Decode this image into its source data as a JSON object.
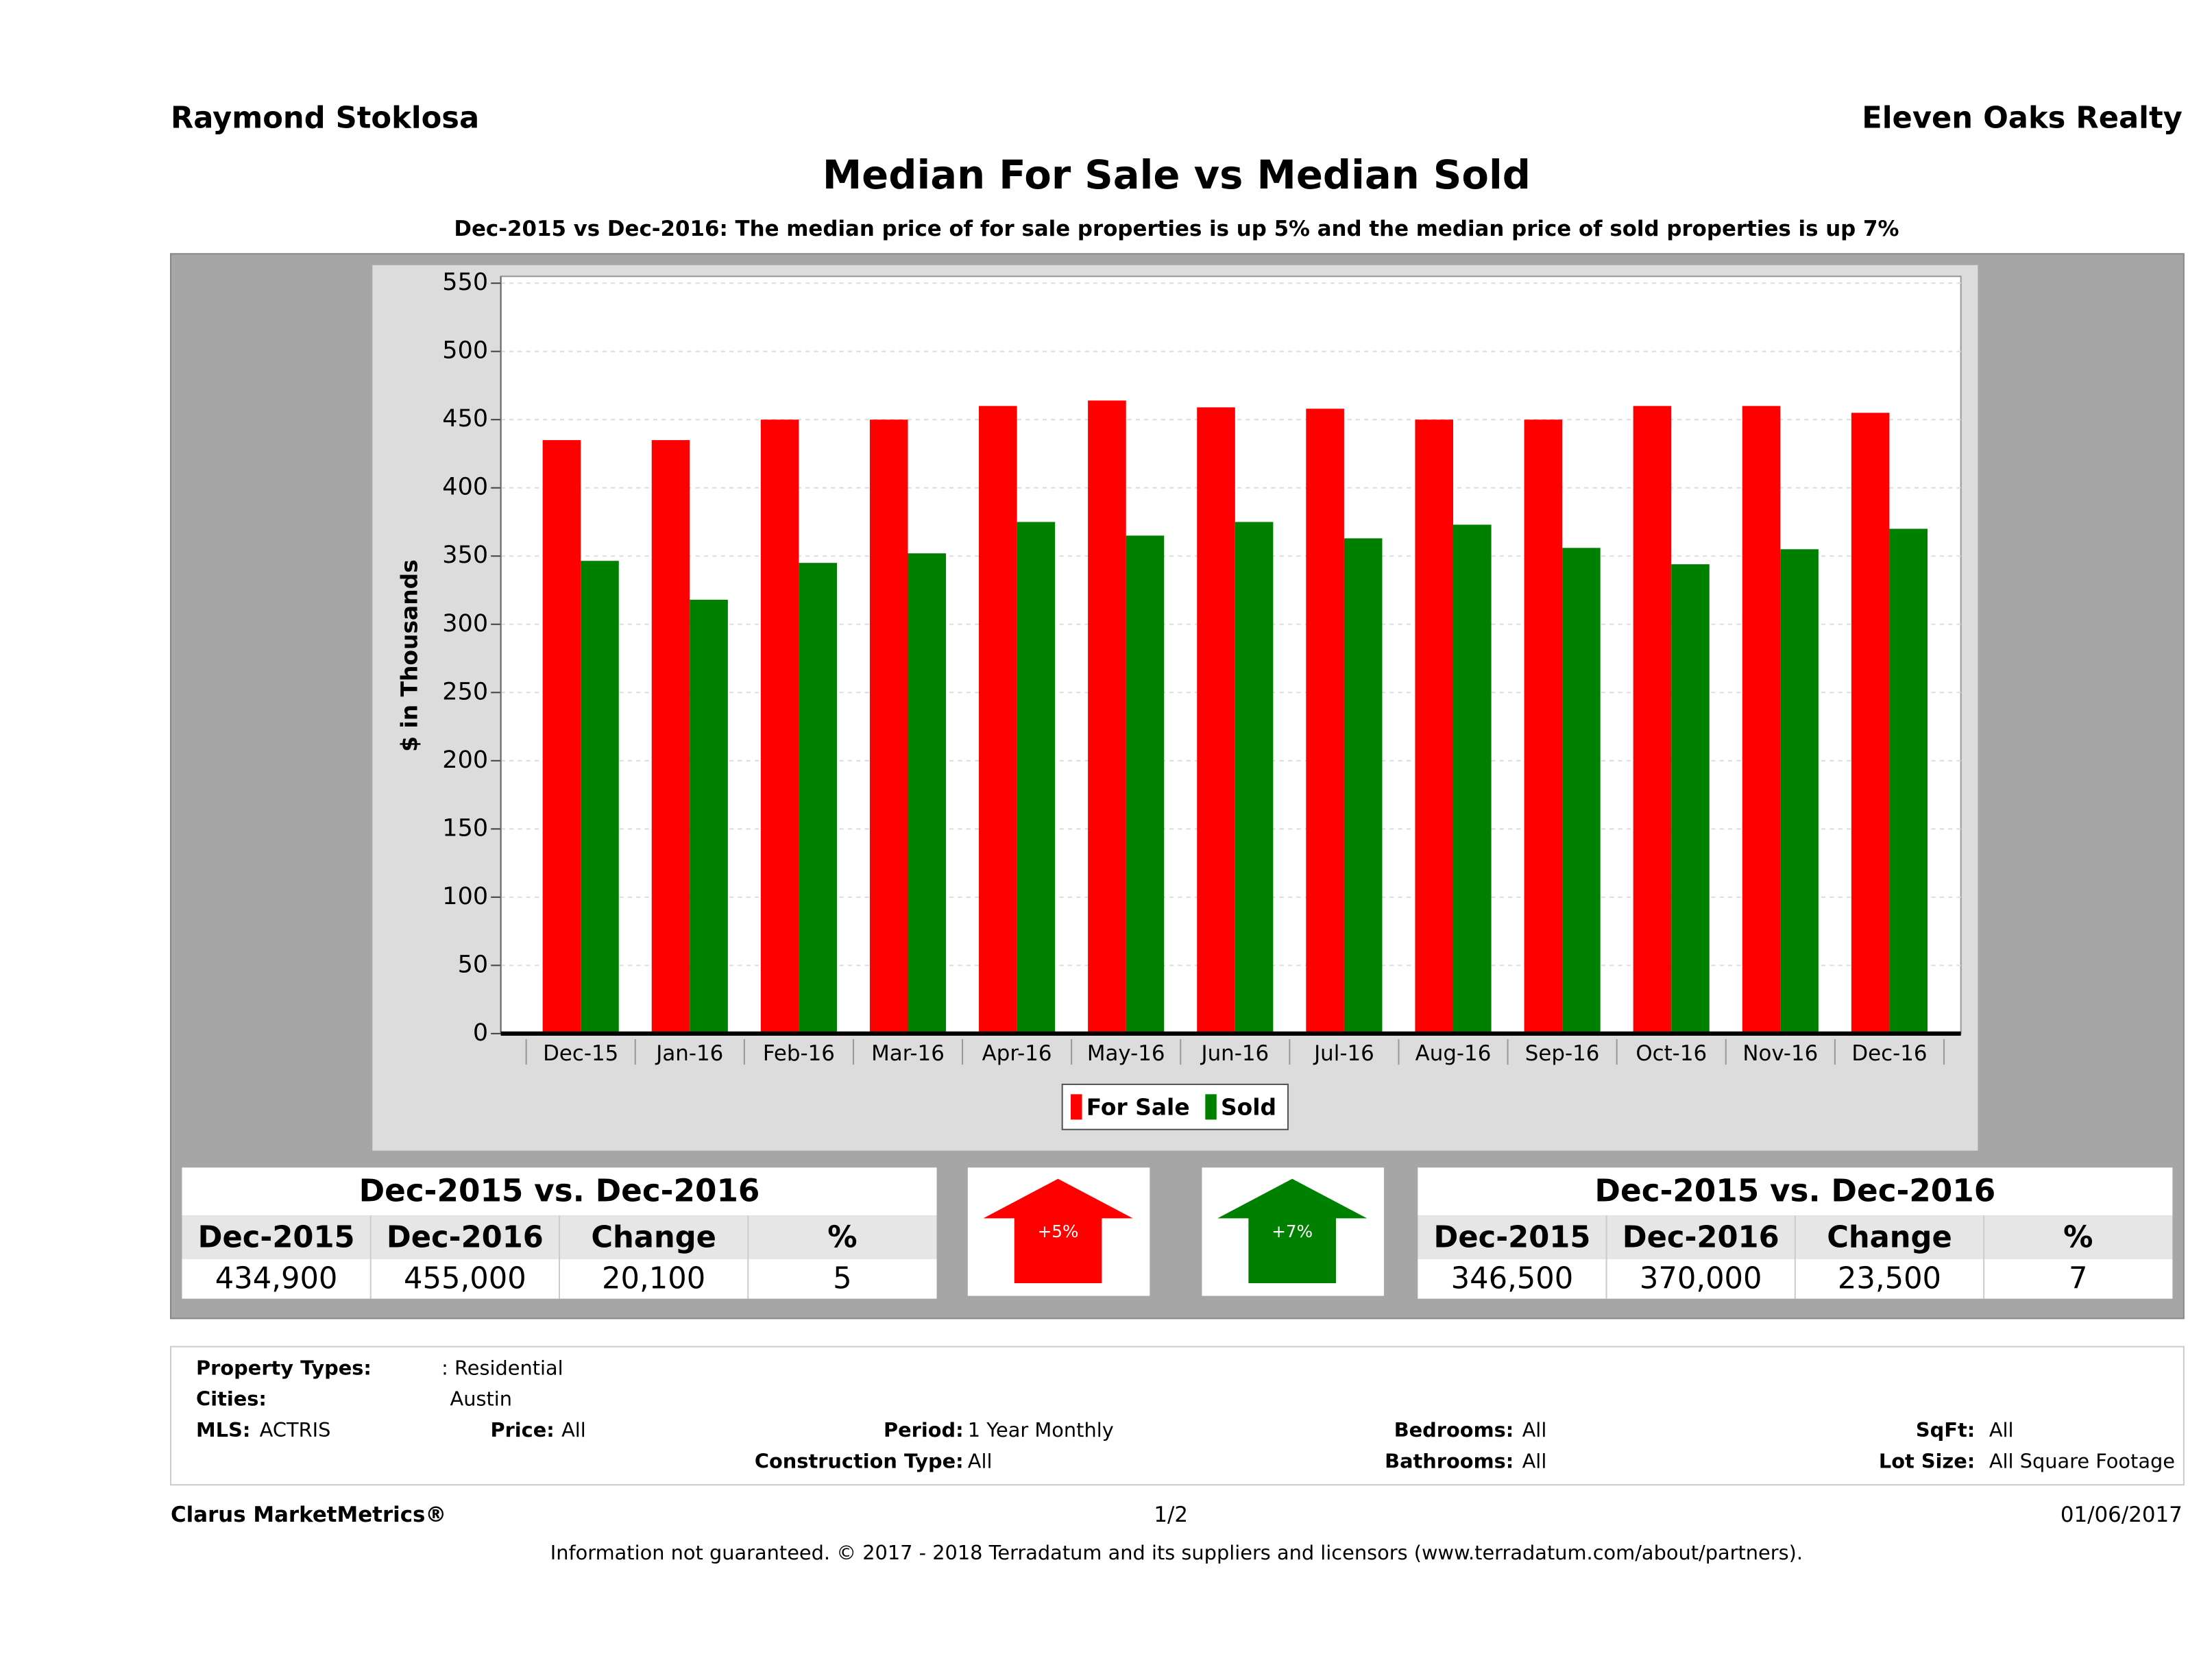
{
  "header": {
    "left": "Raymond Stoklosa",
    "right": "Eleven Oaks Realty"
  },
  "chart_data": {
    "type": "bar",
    "title": "Median For Sale vs Median Sold",
    "subtitle": "Dec-2015 vs Dec-2016: The median price of for sale properties is up 5% and the median price of sold properties is up 7%",
    "y_label": "$ in Thousands",
    "categories": [
      "Dec-15",
      "Jan-16",
      "Feb-16",
      "Mar-16",
      "Apr-16",
      "May-16",
      "Jun-16",
      "Jul-16",
      "Aug-16",
      "Sep-16",
      "Oct-16",
      "Nov-16",
      "Dec-16"
    ],
    "series": [
      {
        "name": "For Sale",
        "color": "#ff0000",
        "values": [
          435,
          435,
          450,
          450,
          460,
          464,
          459,
          458,
          450,
          450,
          460,
          460,
          455
        ]
      },
      {
        "name": "Sold",
        "color": "#008000",
        "values": [
          346.5,
          318,
          345,
          352,
          375,
          365,
          375,
          363,
          373,
          356,
          344,
          355,
          370
        ]
      }
    ],
    "ylim": [
      0,
      555
    ],
    "yticks": [
      0,
      50,
      100,
      150,
      200,
      250,
      300,
      350,
      400,
      450,
      500,
      550
    ],
    "grid": true
  },
  "summaries": [
    {
      "title": "Dec-2015 vs. Dec-2016",
      "headers": [
        "Dec-2015",
        "Dec-2016",
        "Change",
        "%"
      ],
      "values": [
        "434,900",
        "455,000",
        "20,100",
        "5"
      ],
      "arrow_label": "+5%",
      "arrow_color": "#ff0000"
    },
    {
      "title": "Dec-2015 vs. Dec-2016",
      "headers": [
        "Dec-2015",
        "Dec-2016",
        "Change",
        "%"
      ],
      "values": [
        "346,500",
        "370,000",
        "23,500",
        "7"
      ],
      "arrow_label": "+7%",
      "arrow_color": "#008000"
    }
  ],
  "filters": [
    {
      "label": "Property Types:",
      "value": ": Residential"
    },
    {
      "label": "Cities:",
      "value": "Austin"
    },
    {
      "label": "MLS:",
      "value": "ACTRIS"
    },
    {
      "label": "Price:",
      "value": "All"
    },
    {
      "label": "Period:",
      "value": "1 Year Monthly"
    },
    {
      "label": "Bedrooms:",
      "value": "All"
    },
    {
      "label": "SqFt:",
      "value": "All"
    },
    {
      "label": "Construction Type:",
      "value": "All"
    },
    {
      "label": "Bathrooms:",
      "value": "All"
    },
    {
      "label": "Lot Size:",
      "value": "All Square Footage"
    }
  ],
  "footer": {
    "left": "Clarus MarketMetrics®",
    "page": "1/2",
    "date": "01/06/2017",
    "disclaimer": "Information not guaranteed. © 2017 - 2018 Terradatum and its suppliers and licensors (www.terradatum.com/about/partners)."
  }
}
